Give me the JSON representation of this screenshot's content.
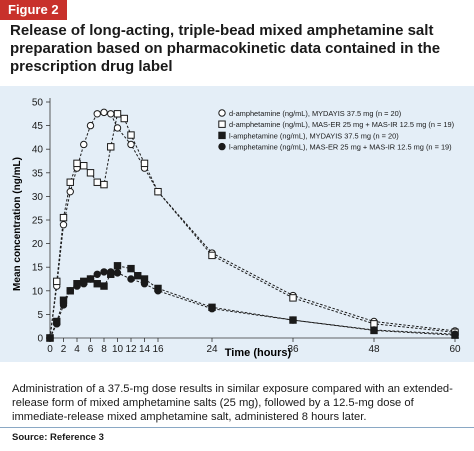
{
  "figure_label": "Figure 2",
  "title": "Release of long-acting, triple-bead mixed amphetamine salt preparation based on pharmacokinetic data contained in the prescription drug label",
  "caption": "Administration of a 37.5-mg dose results in similar exposure compared with an extended-release form of mixed amphetamine salts (25 mg), followed by a 12.5-mg dose of immediate-release mixed amphetamine salt, administered 8 hours later.",
  "source": "Source: Reference 3",
  "colors": {
    "figure_tag": "#c8312b",
    "panel_bg": "#e4eef7",
    "series": "#1a1a1a"
  },
  "chart_data": {
    "type": "line",
    "xlabel": "Time (hours)",
    "ylabel": "Mean concentration (ng/mL)",
    "xlim": [
      0,
      60
    ],
    "ylim": [
      0,
      50
    ],
    "x_ticks": [
      0,
      2,
      4,
      6,
      8,
      10,
      12,
      14,
      16,
      24,
      36,
      48,
      60
    ],
    "y_ticks": [
      0,
      5,
      10,
      15,
      20,
      25,
      30,
      35,
      40,
      45,
      50
    ],
    "legend_position": "top-right",
    "series": [
      {
        "name": "d-amphetamine (ng/mL), MYDAYIS 37.5 mg (n = 20)",
        "marker": "circle-open",
        "line": "dashed",
        "points": [
          [
            0,
            0
          ],
          [
            1,
            11
          ],
          [
            2,
            24
          ],
          [
            3,
            31
          ],
          [
            4,
            36
          ],
          [
            5,
            41
          ],
          [
            6,
            45
          ],
          [
            7,
            47.5
          ],
          [
            8,
            47.8
          ],
          [
            9,
            47.5
          ],
          [
            10,
            44.5
          ],
          [
            12,
            41
          ],
          [
            14,
            36
          ],
          [
            16,
            31
          ],
          [
            24,
            18
          ],
          [
            36,
            9
          ],
          [
            48,
            3.5
          ],
          [
            60,
            1.5
          ]
        ]
      },
      {
        "name": "d-amphetamine (ng/mL), MAS-ER 25 mg + MAS-IR 12.5 mg (n = 19)",
        "marker": "square-open",
        "line": "dashed",
        "points": [
          [
            0,
            0
          ],
          [
            1,
            12
          ],
          [
            2,
            25.5
          ],
          [
            3,
            33
          ],
          [
            4,
            37
          ],
          [
            5,
            36.5
          ],
          [
            6,
            35
          ],
          [
            7,
            33
          ],
          [
            8,
            32.5
          ],
          [
            9,
            40.5
          ],
          [
            10,
            47.5
          ],
          [
            11,
            46.5
          ],
          [
            12,
            43
          ],
          [
            14,
            37
          ],
          [
            16,
            31
          ],
          [
            24,
            17.5
          ],
          [
            36,
            8.5
          ],
          [
            48,
            3
          ],
          [
            60,
            1.2
          ]
        ]
      },
      {
        "name": "l-amphetamine (ng/mL), MYDAYIS 37.5 mg (n = 20)",
        "marker": "square-filled",
        "line": "dashed",
        "points": [
          [
            0,
            0
          ],
          [
            1,
            3.5
          ],
          [
            2,
            8
          ],
          [
            3,
            10
          ],
          [
            4,
            11.5
          ],
          [
            5,
            12
          ],
          [
            6,
            12.5
          ],
          [
            7,
            11.5
          ],
          [
            8,
            11
          ],
          [
            9,
            13.5
          ],
          [
            10,
            15.3
          ],
          [
            12,
            14.7
          ],
          [
            13,
            13.2
          ],
          [
            14,
            12.5
          ],
          [
            16,
            10.5
          ],
          [
            24,
            6.5
          ],
          [
            36,
            3.8
          ],
          [
            48,
            1.6
          ],
          [
            60,
            0.6
          ]
        ]
      },
      {
        "name": "l-amphetamine (ng/mL), MAS-ER 25 mg + MAS-IR 12.5 mg (n = 19)",
        "marker": "circle-filled",
        "line": "dashed",
        "points": [
          [
            0,
            0
          ],
          [
            1,
            3
          ],
          [
            2,
            7
          ],
          [
            3,
            10
          ],
          [
            4,
            11
          ],
          [
            5,
            11.5
          ],
          [
            6,
            12.5
          ],
          [
            7,
            13.5
          ],
          [
            8,
            14
          ],
          [
            9,
            14
          ],
          [
            10,
            13.8
          ],
          [
            12,
            12.5
          ],
          [
            14,
            11.5
          ],
          [
            16,
            10
          ],
          [
            24,
            6.2
          ],
          [
            36,
            3.8
          ],
          [
            48,
            1.7
          ],
          [
            60,
            0.8
          ]
        ]
      }
    ]
  }
}
